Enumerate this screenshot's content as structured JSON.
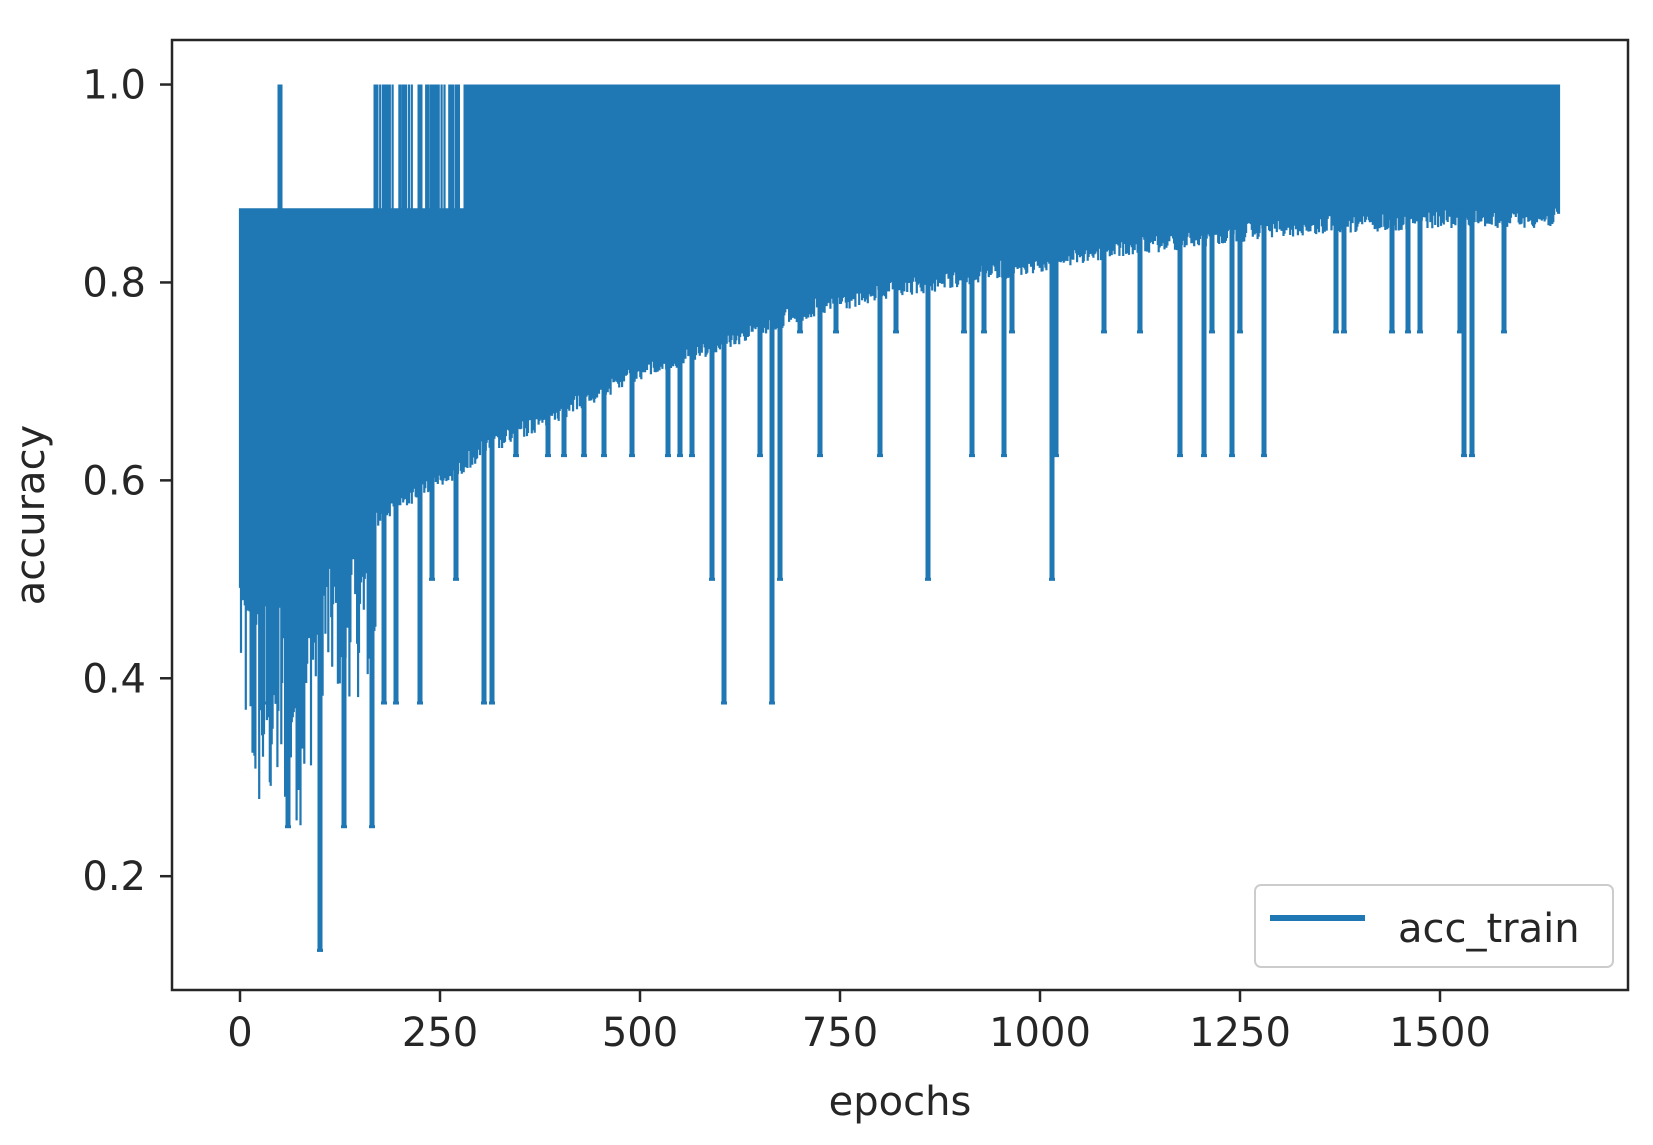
{
  "chart_data": {
    "type": "line",
    "title": "",
    "xlabel": "epochs",
    "ylabel": "accuracy",
    "xlim": [
      -85,
      1735
    ],
    "ylim": [
      0.085,
      1.045
    ],
    "xticks": [
      0,
      250,
      500,
      750,
      1000,
      1250,
      1500
    ],
    "xtick_labels": [
      "0",
      "250",
      "500",
      "750",
      "1000",
      "1250",
      "1500"
    ],
    "yticks": [
      0.2,
      0.4,
      0.6,
      0.8,
      1.0
    ],
    "ytick_labels": [
      "0.2",
      "0.4",
      "0.6",
      "0.8",
      "1.0"
    ],
    "grid": false,
    "legend": {
      "position": "lower-right",
      "entries": [
        "acc_train"
      ]
    },
    "series": [
      {
        "name": "acc_train",
        "color": "#1f77b4",
        "style": "noisy-line",
        "x_range": [
          0,
          1650
        ],
        "max_value": 1.0,
        "lower_envelope": {
          "x": [
            0,
            25,
            50,
            100,
            150,
            200,
            250,
            300,
            350,
            400,
            500,
            600,
            700,
            800,
            900,
            1000,
            1100,
            1200,
            1300,
            1400,
            1500,
            1600,
            1650
          ],
          "y": [
            0.55,
            0.5,
            0.52,
            0.54,
            0.56,
            0.59,
            0.61,
            0.64,
            0.66,
            0.68,
            0.72,
            0.75,
            0.78,
            0.8,
            0.815,
            0.83,
            0.845,
            0.855,
            0.865,
            0.87,
            0.875,
            0.875,
            0.875
          ]
        },
        "early_dense_minimum": {
          "x": [
            0,
            20,
            80,
            100,
            170
          ],
          "y": [
            0.38,
            0.25,
            0.25,
            0.38,
            0.38
          ]
        },
        "spikes_up": [
          {
            "x": 50,
            "y": 1.0
          },
          {
            "x": 170,
            "y": 1.0
          },
          {
            "x": 185,
            "y": 1.0
          },
          {
            "x": 205,
            "y": 1.0
          },
          {
            "x": 225,
            "y": 1.0
          },
          {
            "x": 240,
            "y": 1.0
          },
          {
            "x": 265,
            "y": 1.0
          },
          {
            "x": 285,
            "y": 1.0
          }
        ],
        "spikes_down": [
          {
            "x": 35,
            "y": 0.375
          },
          {
            "x": 60,
            "y": 0.25
          },
          {
            "x": 100,
            "y": 0.125
          },
          {
            "x": 130,
            "y": 0.25
          },
          {
            "x": 165,
            "y": 0.25
          },
          {
            "x": 180,
            "y": 0.375
          },
          {
            "x": 195,
            "y": 0.375
          },
          {
            "x": 225,
            "y": 0.375
          },
          {
            "x": 240,
            "y": 0.5
          },
          {
            "x": 270,
            "y": 0.5
          },
          {
            "x": 305,
            "y": 0.375
          },
          {
            "x": 315,
            "y": 0.375
          },
          {
            "x": 345,
            "y": 0.625
          },
          {
            "x": 385,
            "y": 0.625
          },
          {
            "x": 405,
            "y": 0.625
          },
          {
            "x": 430,
            "y": 0.625
          },
          {
            "x": 455,
            "y": 0.625
          },
          {
            "x": 490,
            "y": 0.625
          },
          {
            "x": 535,
            "y": 0.625
          },
          {
            "x": 550,
            "y": 0.625
          },
          {
            "x": 565,
            "y": 0.625
          },
          {
            "x": 590,
            "y": 0.5
          },
          {
            "x": 605,
            "y": 0.375
          },
          {
            "x": 650,
            "y": 0.625
          },
          {
            "x": 665,
            "y": 0.375
          },
          {
            "x": 675,
            "y": 0.5
          },
          {
            "x": 700,
            "y": 0.75
          },
          {
            "x": 725,
            "y": 0.625
          },
          {
            "x": 745,
            "y": 0.75
          },
          {
            "x": 800,
            "y": 0.625
          },
          {
            "x": 820,
            "y": 0.75
          },
          {
            "x": 860,
            "y": 0.5
          },
          {
            "x": 905,
            "y": 0.75
          },
          {
            "x": 915,
            "y": 0.625
          },
          {
            "x": 930,
            "y": 0.75
          },
          {
            "x": 955,
            "y": 0.625
          },
          {
            "x": 965,
            "y": 0.75
          },
          {
            "x": 1015,
            "y": 0.5
          },
          {
            "x": 1020,
            "y": 0.625
          },
          {
            "x": 1080,
            "y": 0.75
          },
          {
            "x": 1125,
            "y": 0.75
          },
          {
            "x": 1175,
            "y": 0.625
          },
          {
            "x": 1205,
            "y": 0.625
          },
          {
            "x": 1215,
            "y": 0.75
          },
          {
            "x": 1240,
            "y": 0.625
          },
          {
            "x": 1250,
            "y": 0.75
          },
          {
            "x": 1280,
            "y": 0.625
          },
          {
            "x": 1370,
            "y": 0.75
          },
          {
            "x": 1380,
            "y": 0.75
          },
          {
            "x": 1440,
            "y": 0.75
          },
          {
            "x": 1460,
            "y": 0.75
          },
          {
            "x": 1475,
            "y": 0.75
          },
          {
            "x": 1525,
            "y": 0.75
          },
          {
            "x": 1530,
            "y": 0.625
          },
          {
            "x": 1540,
            "y": 0.625
          },
          {
            "x": 1580,
            "y": 0.75
          }
        ]
      }
    ]
  }
}
